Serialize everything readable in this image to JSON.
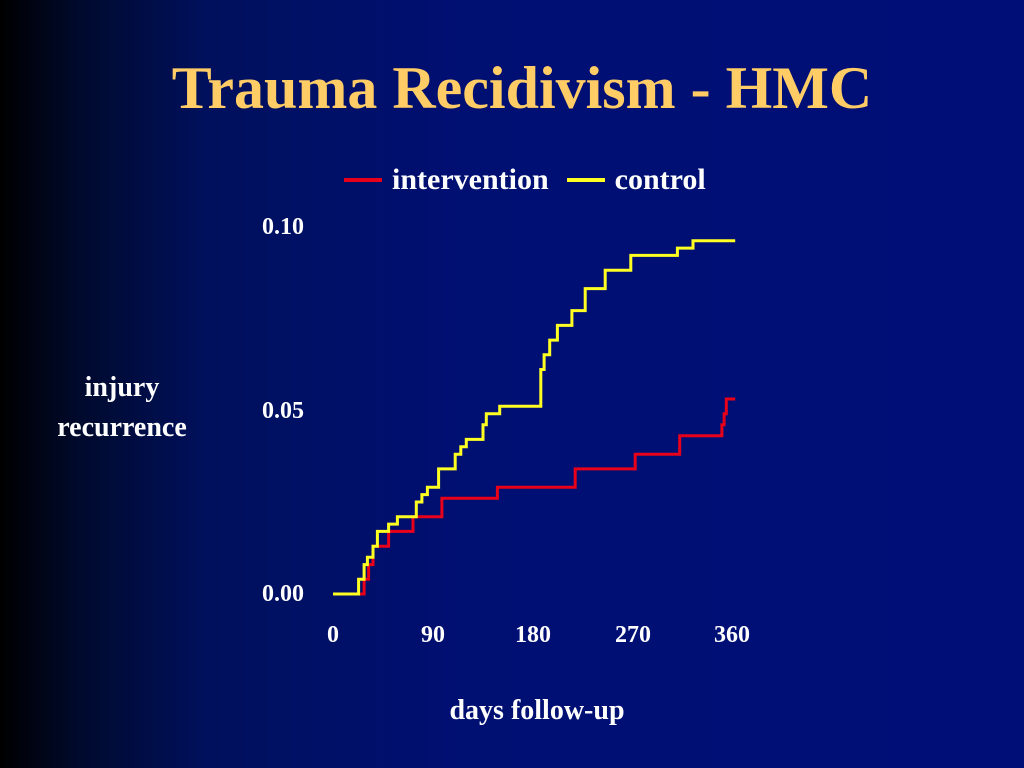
{
  "title": "Trauma Recidivism - HMC",
  "chart_data": {
    "type": "line",
    "title": "Trauma Recidivism - HMC",
    "xlabel": "days follow-up",
    "ylabel": "injury recurrence",
    "xlim": [
      0,
      360
    ],
    "ylim": [
      0,
      0.1
    ],
    "x_ticks": [
      "0",
      "90",
      "180",
      "270",
      "360"
    ],
    "y_ticks": [
      "0.10",
      "0.05",
      "0.00"
    ],
    "grid": false,
    "legend_position": "top",
    "step": true,
    "series": [
      {
        "name": "intervention",
        "color": "#e8001a",
        "x": [
          0,
          20,
          28,
          32,
          36,
          50,
          55,
          72,
          98,
          148,
          218,
          272,
          312,
          350,
          352,
          354,
          362
        ],
        "y": [
          0,
          0,
          0.004,
          0.008,
          0.013,
          0.017,
          0.017,
          0.021,
          0.026,
          0.029,
          0.034,
          0.038,
          0.043,
          0.046,
          0.049,
          0.053,
          0.053
        ]
      },
      {
        "name": "control",
        "color": "#ffff22",
        "x": [
          0,
          20,
          23,
          28,
          31,
          36,
          40,
          50,
          58,
          70,
          75,
          80,
          85,
          95,
          110,
          115,
          120,
          135,
          138,
          150,
          187,
          190,
          195,
          202,
          215,
          227,
          245,
          268,
          285,
          310,
          324,
          328,
          362
        ],
        "y": [
          0,
          0,
          0.004,
          0.008,
          0.01,
          0.013,
          0.017,
          0.019,
          0.021,
          0.021,
          0.025,
          0.027,
          0.029,
          0.034,
          0.038,
          0.04,
          0.042,
          0.046,
          0.049,
          0.051,
          0.061,
          0.065,
          0.069,
          0.073,
          0.077,
          0.083,
          0.088,
          0.092,
          0.092,
          0.094,
          0.096,
          0.096,
          0.096
        ]
      }
    ]
  }
}
